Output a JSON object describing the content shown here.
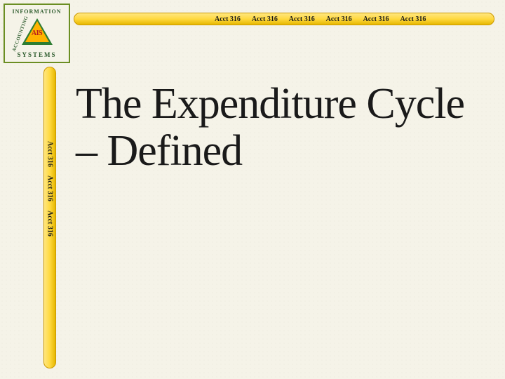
{
  "logo": {
    "arc_top": "INFORMATION",
    "arc_left": "ACCOUNTING",
    "arc_bottom": "SYSTEMS",
    "center": "AIS",
    "border_color": "#6b8e23",
    "triangle_outer": "#2e7d32",
    "triangle_inner": "#ffb300",
    "text_color": "#2e5c2e",
    "center_color": "#b71c1c"
  },
  "bars": {
    "segment_text": "Acct 316",
    "top_repeat": 6,
    "side_repeat": 3,
    "gradient_start": "#ffe680",
    "gradient_mid": "#ffd940",
    "gradient_end": "#e6b800",
    "border_color": "#cc9900",
    "text_color": "#1a1a1a",
    "font_size_pt": 10
  },
  "slide": {
    "title": "The Expenditure Cycle – Defined",
    "title_color": "#1a1a1a",
    "title_font_size_pt": 62,
    "background_color": "#f5f3e8"
  }
}
